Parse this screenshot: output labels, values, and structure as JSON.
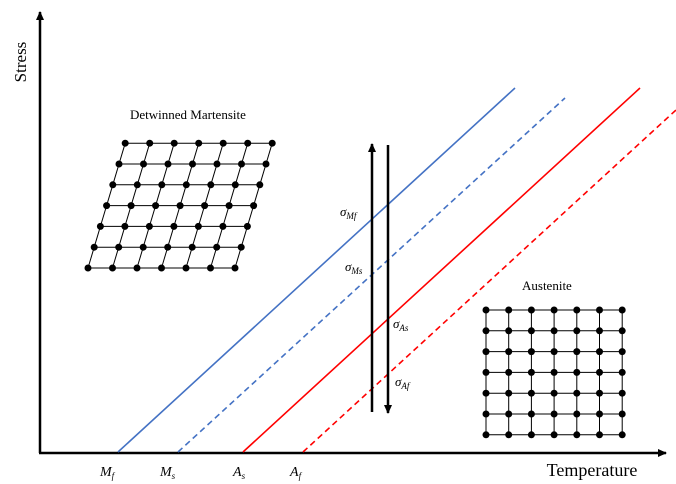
{
  "axes": {
    "y_label": "Stress",
    "x_label": "Temperature"
  },
  "regions": {
    "martensite": "Detwinned Martensite",
    "austenite": "Austenite"
  },
  "temperatures": [
    {
      "main": "M",
      "sub": "f"
    },
    {
      "main": "M",
      "sub": "s"
    },
    {
      "main": "A",
      "sub": "s"
    },
    {
      "main": "A",
      "sub": "f"
    }
  ],
  "stresses": [
    {
      "main": "σ",
      "sub": "Mf"
    },
    {
      "main": "σ",
      "sub": "Ms"
    },
    {
      "main": "σ",
      "sub": "As"
    },
    {
      "main": "σ",
      "sub": "Af"
    }
  ]
}
